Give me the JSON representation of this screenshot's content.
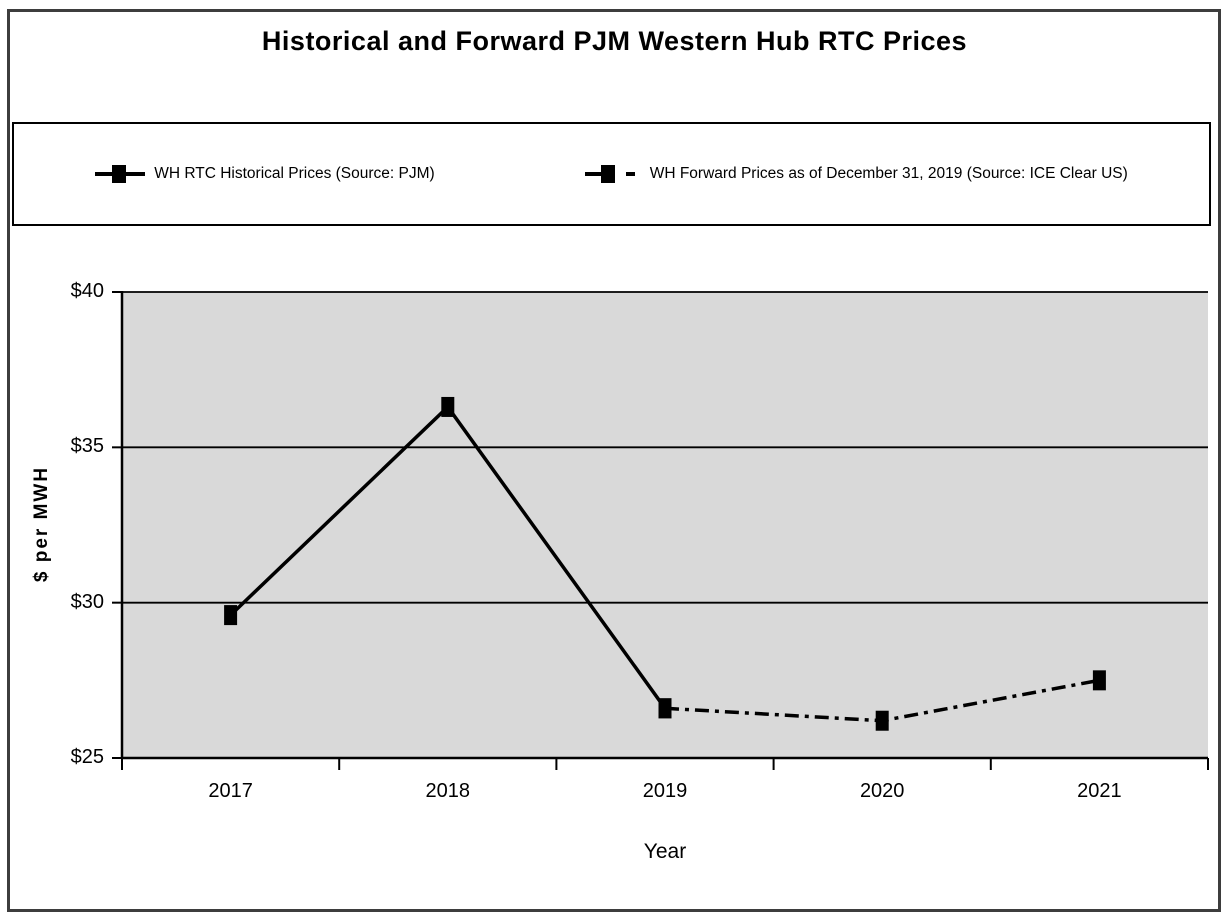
{
  "title": "Historical and Forward PJM Western Hub RTC Prices",
  "chart_data": {
    "type": "line",
    "title": "Historical and Forward PJM Western Hub RTC Prices",
    "xlabel": "Year",
    "ylabel": "$ per MWH",
    "categories": [
      "2017",
      "2018",
      "2019",
      "2020",
      "2021"
    ],
    "ylim": [
      25,
      40
    ],
    "y_tick_step": 5,
    "y_ticks": [
      "$25",
      "$30",
      "$35",
      "$40"
    ],
    "grid": "horizontal",
    "legend_position": "top",
    "plot_bg": "#d9d9d9",
    "line_color": "#000000",
    "series": [
      {
        "name": "WH RTC Historical Prices (Source: PJM)",
        "style": "solid",
        "marker": "square",
        "x": [
          "2017",
          "2018",
          "2019"
        ],
        "values": [
          29.6,
          36.3,
          26.6
        ]
      },
      {
        "name": "WH Forward Prices as of December 31, 2019 (Source: ICE Clear US)",
        "style": "dash-dot",
        "marker": "square",
        "x": [
          "2019",
          "2020",
          "2021"
        ],
        "values": [
          26.6,
          26.2,
          27.5
        ]
      }
    ]
  },
  "colors": {
    "plot_background": "#d9d9d9",
    "series": "#000000",
    "border": "#3d3d3d",
    "text": "#000000"
  }
}
